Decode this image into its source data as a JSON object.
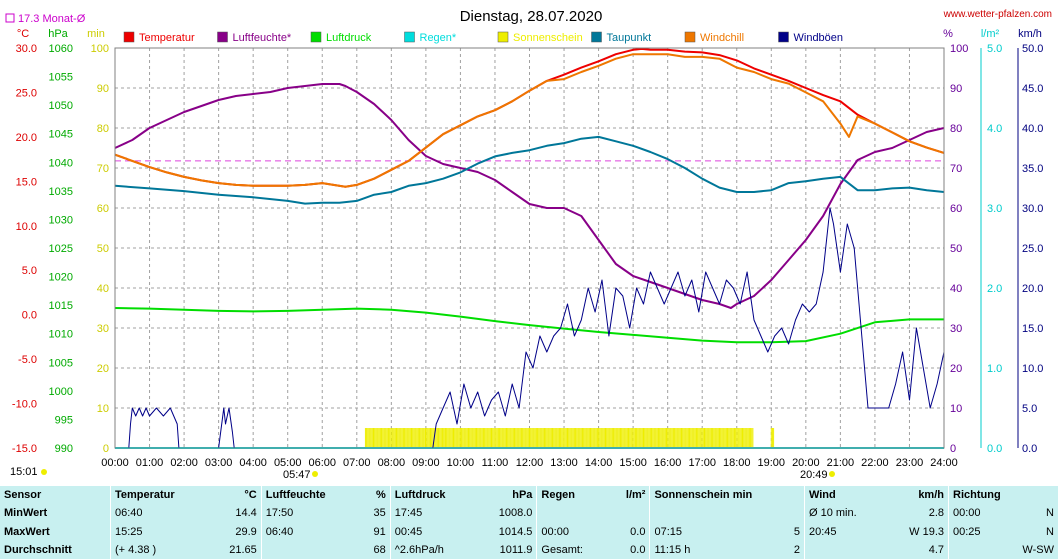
{
  "header": {
    "title": "Dienstag, 28.07.2020",
    "site": "www.wetter-pfalzen.com",
    "monthly_avg": "17.3 Monat-Ø",
    "time_left": "15:01",
    "sunrise": "05:47",
    "sunset": "20:49"
  },
  "chart_data": {
    "type": "line",
    "title": "Dienstag, 28.07.2020",
    "x_unit": "hours",
    "xlim": [
      0,
      24
    ],
    "x_ticks": [
      "00:00",
      "01:00",
      "02:00",
      "03:00",
      "04:00",
      "05:00",
      "06:00",
      "07:00",
      "08:00",
      "09:00",
      "10:00",
      "11:00",
      "12:00",
      "13:00",
      "14:00",
      "15:00",
      "16:00",
      "17:00",
      "18:00",
      "19:00",
      "20:00",
      "21:00",
      "22:00",
      "23:00",
      "24:00"
    ],
    "axes": {
      "temp": {
        "label": "°C",
        "min": -15,
        "max": 30,
        "ticks": [
          "30.0",
          "25.0",
          "20.0",
          "15.0",
          "10.0",
          "5.0",
          "0.0",
          "-5.0",
          "-10.0",
          "-15.0"
        ],
        "color": "#dd0000"
      },
      "pressure": {
        "label": "hPa",
        "min": 990,
        "max": 1060,
        "ticks": [
          "1060",
          "1055",
          "1050",
          "1045",
          "1040",
          "1035",
          "1030",
          "1025",
          "1020",
          "1015",
          "1010",
          "1005",
          "1000",
          "995",
          "990"
        ],
        "color": "#00aa00"
      },
      "sun_min": {
        "label": "min",
        "min": 0,
        "max": 100,
        "ticks": [
          "100",
          "90",
          "80",
          "70",
          "60",
          "50",
          "40",
          "30",
          "20",
          "10",
          "0"
        ],
        "color": "#cccc00"
      },
      "percent": {
        "label": "%",
        "min": 0,
        "max": 100,
        "ticks": [
          "100",
          "90",
          "80",
          "70",
          "60",
          "50",
          "40",
          "30",
          "20",
          "10",
          "0"
        ],
        "color": "#660099"
      },
      "rain": {
        "label": "l/m²",
        "min": 0,
        "max": 5,
        "ticks": [
          "5.0",
          "4.0",
          "3.0",
          "2.0",
          "1.0",
          "0.0"
        ],
        "color": "#00cccc"
      },
      "wind": {
        "label": "km/h",
        "min": 0,
        "max": 50,
        "ticks": [
          "50.0",
          "45.0",
          "40.0",
          "35.0",
          "30.0",
          "25.0",
          "20.0",
          "15.0",
          "10.0",
          "5.0",
          "0.0"
        ],
        "color": "#000080"
      }
    },
    "series": [
      {
        "name": "Temperatur",
        "color": "#ee0000",
        "axis": "temp",
        "x": [
          0,
          0.5,
          1,
          1.5,
          2,
          2.5,
          3,
          3.5,
          4,
          4.5,
          5,
          5.5,
          6,
          6.67,
          7,
          7.5,
          8,
          8.5,
          9,
          9.5,
          10,
          10.5,
          11,
          11.5,
          12,
          12.5,
          13,
          13.5,
          14,
          14.5,
          15,
          15.25,
          15.5,
          16,
          16.5,
          17,
          17.5,
          18,
          18.5,
          19,
          19.5,
          20,
          20.5,
          21,
          21.5,
          22,
          22.5,
          23,
          23.5,
          24
        ],
        "y": [
          18.0,
          17.3,
          16.6,
          16.0,
          15.5,
          15.1,
          14.8,
          14.6,
          14.5,
          14.5,
          14.5,
          14.6,
          14.8,
          14.4,
          14.6,
          15.3,
          16.3,
          17.3,
          18.8,
          20.3,
          21.3,
          22.3,
          23.0,
          24.0,
          25.2,
          26.3,
          27.0,
          27.8,
          28.5,
          29.3,
          29.8,
          29.9,
          29.8,
          29.8,
          29.6,
          29.5,
          29.2,
          28.6,
          27.7,
          27.0,
          26.3,
          25.5,
          24.7,
          24.0,
          22.5,
          21.5,
          20.5,
          19.5,
          18.8,
          18.2
        ]
      },
      {
        "name": "Luftfeuchte*",
        "color": "#880088",
        "axis": "percent",
        "x": [
          0,
          0.5,
          1,
          1.5,
          2,
          2.5,
          3,
          3.5,
          4,
          4.5,
          5,
          5.5,
          6,
          6.5,
          6.67,
          7,
          7.5,
          8,
          8.5,
          9,
          9.5,
          10,
          10.5,
          11,
          11.5,
          12,
          12.5,
          13,
          13.5,
          14,
          14.5,
          15,
          15.5,
          16,
          16.5,
          17,
          17.5,
          17.83,
          18,
          18.5,
          19,
          19.5,
          20,
          20.5,
          21,
          21.5,
          22,
          22.5,
          23,
          23.5,
          24
        ],
        "y": [
          75,
          77,
          80,
          82,
          84,
          85.5,
          87,
          88,
          88.5,
          89,
          90,
          90.5,
          91,
          91,
          90.5,
          89,
          86,
          82,
          77,
          73,
          71,
          70,
          69,
          67,
          64,
          61,
          60,
          60,
          58,
          52,
          46,
          43,
          41.5,
          40,
          38.5,
          37,
          36,
          35,
          36,
          38,
          42,
          47,
          52,
          58,
          66,
          72,
          74,
          75,
          77,
          79,
          80
        ]
      },
      {
        "name": "Luftdruck",
        "color": "#00dd00",
        "axis": "pressure",
        "x": [
          0,
          1,
          2,
          3,
          4,
          5,
          6,
          7,
          8,
          9,
          10,
          11,
          12,
          13,
          14,
          15,
          16,
          17,
          18,
          19,
          20,
          21,
          22,
          23,
          24
        ],
        "y": [
          1014.5,
          1014.4,
          1014.2,
          1014.0,
          1013.9,
          1014.0,
          1014.2,
          1014.4,
          1014.2,
          1013.7,
          1013.0,
          1012.2,
          1011.5,
          1010.9,
          1010.3,
          1009.8,
          1009.3,
          1008.8,
          1008.5,
          1008.5,
          1008.7,
          1010.0,
          1012.0,
          1012.5,
          1012.5
        ]
      },
      {
        "name": "Regen*",
        "color": "#00dddd",
        "axis": "rain",
        "x": [
          0,
          24
        ],
        "y": [
          0,
          0
        ]
      },
      {
        "name": "Sonnenschein",
        "color": "#eeee00",
        "axis": "sun_min",
        "bars": [
          [
            7.25,
            9.0
          ],
          [
            9.0,
            9.5
          ],
          [
            9.5,
            18.5
          ],
          [
            19.0,
            19.1
          ]
        ]
      },
      {
        "name": "Taupunkt",
        "color": "#007799",
        "axis": "temp",
        "x": [
          0,
          1,
          2,
          3,
          4,
          5,
          5.5,
          6,
          6.5,
          7,
          7.5,
          8,
          8.5,
          9,
          9.5,
          10,
          10.5,
          11,
          11.5,
          12,
          12.5,
          13,
          13.5,
          14,
          14.5,
          15,
          15.5,
          16,
          16.5,
          17,
          17.5,
          18,
          18.5,
          19,
          19.5,
          20,
          20.5,
          21,
          21.5,
          22,
          22.5,
          23,
          23.5,
          24
        ],
        "y": [
          14.5,
          14.2,
          13.9,
          13.5,
          13.2,
          12.8,
          12.5,
          12.6,
          12.6,
          12.8,
          13.5,
          13.8,
          14.5,
          14.8,
          15.3,
          16.0,
          17.0,
          17.8,
          18.2,
          18.5,
          19.0,
          19.3,
          19.8,
          20.0,
          19.5,
          19.0,
          18.3,
          17.5,
          16.5,
          15.3,
          14.3,
          13.8,
          13.8,
          14.0,
          14.8,
          15.0,
          15.3,
          15.5,
          14.0,
          14.0,
          14.2,
          14.3,
          14.0,
          13.8
        ]
      },
      {
        "name": "Windchill",
        "color": "#ee7700",
        "axis": "temp",
        "x": [
          0,
          0.5,
          1,
          1.5,
          2,
          2.5,
          3,
          3.5,
          4,
          4.5,
          5,
          5.5,
          6,
          6.67,
          7,
          7.5,
          8,
          8.5,
          9,
          9.5,
          10,
          10.5,
          11,
          11.5,
          12,
          12.5,
          13,
          13.5,
          14,
          14.5,
          15,
          15.5,
          16,
          16.5,
          17,
          17.5,
          18,
          18.5,
          19,
          19.5,
          20,
          20.5,
          21,
          21.25,
          21.5,
          22,
          22.5,
          23,
          23.5,
          24
        ],
        "y": [
          18.0,
          17.3,
          16.6,
          16.0,
          15.5,
          15.1,
          14.8,
          14.6,
          14.5,
          14.5,
          14.5,
          14.6,
          14.8,
          14.4,
          14.6,
          15.3,
          16.3,
          17.3,
          18.8,
          20.3,
          21.3,
          22.3,
          23.0,
          24.0,
          25.2,
          26.3,
          26.5,
          27.3,
          28.0,
          28.8,
          29.3,
          29.3,
          29.3,
          29.0,
          29.0,
          28.8,
          27.8,
          27.3,
          26.5,
          26.0,
          25.0,
          24.0,
          21.5,
          20.0,
          22.3,
          21.5,
          20.5,
          19.5,
          18.8,
          18.2
        ]
      },
      {
        "name": "Windböen",
        "color": "#000088",
        "axis": "wind",
        "x": [
          0,
          0.4,
          0.45,
          0.5,
          0.6,
          0.7,
          0.8,
          0.9,
          1.0,
          1.2,
          1.4,
          1.6,
          1.8,
          1.85,
          1.9,
          2.0,
          3.0,
          3.15,
          3.2,
          3.3,
          3.4,
          3.45,
          3.5,
          4,
          5,
          6,
          7,
          8,
          9,
          9.2,
          9.3,
          9.5,
          9.7,
          9.9,
          10.1,
          10.3,
          10.5,
          10.7,
          10.9,
          11.1,
          11.3,
          11.5,
          11.7,
          11.9,
          12.1,
          12.3,
          12.5,
          12.7,
          12.9,
          13.1,
          13.3,
          13.5,
          13.7,
          13.9,
          14.1,
          14.3,
          14.5,
          14.7,
          14.9,
          15.1,
          15.3,
          15.5,
          15.7,
          15.9,
          16.1,
          16.3,
          16.5,
          16.7,
          16.9,
          17.1,
          17.3,
          17.5,
          17.7,
          17.9,
          18.1,
          18.3,
          18.5,
          18.7,
          18.9,
          19.1,
          19.3,
          19.5,
          19.7,
          19.9,
          20.1,
          20.3,
          20.5,
          20.7,
          20.8,
          21.0,
          21.2,
          21.4,
          21.6,
          21.8,
          22.0,
          22.2,
          22.4,
          22.6,
          22.8,
          23.0,
          23.2,
          23.4,
          23.6,
          23.8,
          24.0
        ],
        "y": [
          0,
          0,
          3,
          5,
          4,
          5,
          4,
          5,
          4,
          5,
          4,
          5,
          3,
          0,
          0,
          0,
          0,
          5,
          3,
          5,
          2,
          0,
          0,
          0,
          0,
          0,
          0,
          0,
          0,
          0,
          3,
          5,
          7,
          3,
          8,
          5,
          7,
          4,
          6,
          7,
          4,
          8,
          5,
          12,
          10,
          14,
          12,
          14,
          15,
          18,
          14,
          16,
          20,
          17,
          21,
          14,
          20,
          19,
          15,
          20,
          18,
          22,
          20,
          18,
          20,
          22,
          19,
          21,
          17,
          22,
          20,
          18,
          21,
          20,
          18,
          22,
          16,
          14,
          12,
          14,
          15,
          13,
          16,
          18,
          17,
          18,
          22,
          30,
          28,
          22,
          28,
          25,
          15,
          5,
          5,
          5,
          5,
          8,
          12,
          6,
          15,
          10,
          5,
          8,
          12
        ]
      }
    ]
  },
  "legend": [
    {
      "label": "Temperatur",
      "color": "#ee0000"
    },
    {
      "label": "Luftfeuchte*",
      "color": "#880088"
    },
    {
      "label": "Luftdruck",
      "color": "#00dd00"
    },
    {
      "label": "Regen*",
      "color": "#00dddd"
    },
    {
      "label": "Sonnenschein",
      "color": "#eeee00"
    },
    {
      "label": "Taupunkt",
      "color": "#007799"
    },
    {
      "label": "Windchill",
      "color": "#ee7700"
    },
    {
      "label": "Windböen",
      "color": "#000088"
    }
  ],
  "table": {
    "headers": {
      "sensor": "Sensor",
      "temp": "Temperatur",
      "temp_unit": "°C",
      "hum": "Luftfeuchte",
      "hum_unit": "%",
      "press": "Luftdruck",
      "press_unit": "hPa",
      "rain": "Regen",
      "rain_unit": "l/m²",
      "sun": "Sonnenschein min",
      "wind": "Wind",
      "wind_unit": "km/h",
      "dir": "Richtung"
    },
    "rows": [
      {
        "label": "MinWert",
        "temp_time": "06:40",
        "temp_val": "14.4",
        "hum_time": "17:50",
        "hum_val": "35",
        "press_time": "17:45",
        "press_val": "1008.0",
        "rain_time": "",
        "rain_val": "",
        "sun_time": "",
        "sun_val": "",
        "wind_time": "Ø 10 min.",
        "wind_val": "2.8",
        "dir_time": "00:00",
        "dir_val": "N"
      },
      {
        "label": "MaxWert",
        "temp_time": "15:25",
        "temp_val": "29.9",
        "hum_time": "06:40",
        "hum_val": "91",
        "press_time": "00:45",
        "press_val": "1014.5",
        "rain_time": "00:00",
        "rain_val": "0.0",
        "sun_time": "07:15",
        "sun_val": "5",
        "wind_time": "20:45",
        "wind_val": "W 19.3",
        "dir_time": "00:25",
        "dir_val": "N"
      },
      {
        "label": "Durchschnitt",
        "temp_time": "(+ 4.38 )",
        "temp_val": "21.65",
        "hum_time": "",
        "hum_val": "68",
        "press_time": "^2.6hPa/h",
        "press_val": "1011.9",
        "rain_time": "Gesamt:",
        "rain_val": "0.0",
        "sun_time": "11:15 h",
        "sun_val": "2",
        "wind_time": "",
        "wind_val": "4.7",
        "dir_time": "",
        "dir_val": "W-SW"
      }
    ]
  }
}
